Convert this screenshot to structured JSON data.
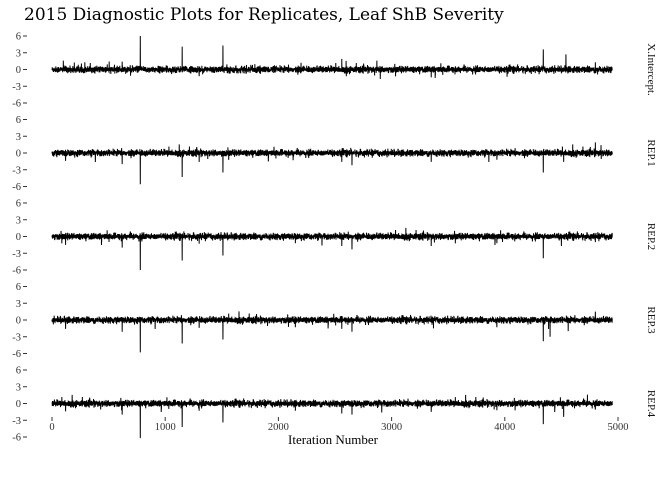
{
  "chart_data": {
    "type": "line",
    "title": "2015 Diagnostic Plots for Replicates, Leaf ShB Severity",
    "xlabel": "Iteration Number",
    "ylabel": "",
    "xlim": [
      0,
      5000
    ],
    "ylim": [
      -6,
      6
    ],
    "x_ticks": [
      0,
      1000,
      2000,
      3000,
      4000,
      5000
    ],
    "y_ticks": [
      -6,
      -3,
      0,
      3,
      6
    ],
    "grid": false,
    "n_iterations": 4950,
    "panels": [
      {
        "name": "X.Intercept.",
        "noise_sd": 0.28,
        "spikes": [
          [
            100,
            1.6
          ],
          [
            290,
            1.3
          ],
          [
            620,
            1.4
          ],
          [
            780,
            6.0
          ],
          [
            1150,
            4.1
          ],
          [
            1300,
            -1.2
          ],
          [
            1510,
            4.3
          ],
          [
            2200,
            1.2
          ],
          [
            2560,
            1.9
          ],
          [
            2600,
            -1.2
          ],
          [
            2870,
            1.6
          ],
          [
            2900,
            -1.7
          ],
          [
            3350,
            -1.4
          ],
          [
            4020,
            -1.3
          ],
          [
            4340,
            3.6
          ],
          [
            4540,
            2.7
          ],
          [
            4800,
            1.3
          ],
          [
            4820,
            -0.9
          ]
        ]
      },
      {
        "name": "REP.1",
        "noise_sd": 0.28,
        "spikes": [
          [
            120,
            -1.4
          ],
          [
            620,
            -2.0
          ],
          [
            780,
            -5.6
          ],
          [
            1150,
            -4.3
          ],
          [
            1300,
            -1.6
          ],
          [
            1510,
            -3.5
          ],
          [
            2130,
            -1.3
          ],
          [
            2560,
            -1.6
          ],
          [
            2650,
            -2.2
          ],
          [
            3350,
            -1.6
          ],
          [
            3930,
            -1.2
          ],
          [
            4340,
            -3.5
          ],
          [
            4520,
            -1.6
          ],
          [
            4800,
            1.9
          ],
          [
            4850,
            1.4
          ]
        ]
      },
      {
        "name": "REP.2",
        "noise_sd": 0.28,
        "spikes": [
          [
            120,
            -1.5
          ],
          [
            620,
            -2.0
          ],
          [
            780,
            -6.0
          ],
          [
            1150,
            -4.3
          ],
          [
            1300,
            -1.3
          ],
          [
            1510,
            -3.4
          ],
          [
            2150,
            -1.2
          ],
          [
            2560,
            -1.7
          ],
          [
            2650,
            -2.3
          ],
          [
            3350,
            -1.7
          ],
          [
            3930,
            -1.2
          ],
          [
            4340,
            -3.9
          ],
          [
            4500,
            -1.7
          ],
          [
            4800,
            -1.0
          ]
        ]
      },
      {
        "name": "REP.3",
        "noise_sd": 0.28,
        "spikes": [
          [
            120,
            -1.6
          ],
          [
            620,
            -2.1
          ],
          [
            780,
            -5.8
          ],
          [
            1150,
            -4.2
          ],
          [
            1300,
            -1.4
          ],
          [
            1510,
            -3.5
          ],
          [
            2150,
            -1.3
          ],
          [
            2560,
            -1.6
          ],
          [
            2650,
            -2.1
          ],
          [
            3370,
            -1.5
          ],
          [
            3930,
            -1.3
          ],
          [
            4340,
            -3.8
          ],
          [
            4400,
            -3.0
          ],
          [
            4560,
            -2.0
          ],
          [
            4800,
            1.5
          ]
        ]
      },
      {
        "name": "REP.4",
        "noise_sd": 0.28,
        "spikes": [
          [
            120,
            -1.4
          ],
          [
            620,
            -2.0
          ],
          [
            780,
            -6.2
          ],
          [
            1150,
            -4.2
          ],
          [
            1300,
            -1.3
          ],
          [
            1510,
            -3.4
          ],
          [
            2150,
            -1.3
          ],
          [
            2560,
            -1.8
          ],
          [
            2650,
            -2.0
          ],
          [
            3350,
            -1.5
          ],
          [
            3930,
            -1.2
          ],
          [
            4340,
            -3.7
          ],
          [
            4520,
            -2.4
          ],
          [
            4730,
            1.6
          ],
          [
            4800,
            -1.1
          ]
        ]
      }
    ]
  }
}
